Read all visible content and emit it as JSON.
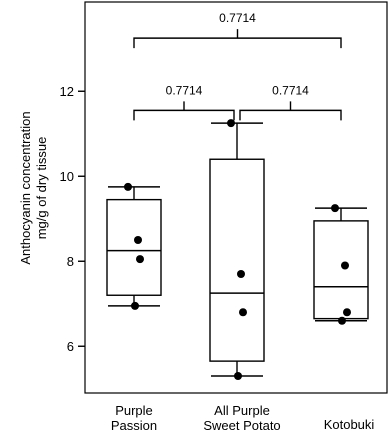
{
  "chart_data": {
    "type": "boxplot",
    "title": "",
    "ylabel": [
      "Anthocyanin concentration",
      "mg/g of dry tissue"
    ],
    "xlabel": "",
    "ylim": [
      4.9,
      14.1
    ],
    "yticks": [
      6,
      8,
      10,
      12
    ],
    "grid": false,
    "categories": [
      [
        "Purple",
        "Passion"
      ],
      [
        "All Purple",
        "Sweet Potato"
      ],
      [
        "Kotobuki"
      ]
    ],
    "boxes": [
      {
        "min": 6.95,
        "q1": 7.2,
        "median": 8.25,
        "q3": 9.45,
        "max": 9.75,
        "points": [
          9.75,
          8.5,
          8.05,
          6.95
        ]
      },
      {
        "min": 5.3,
        "q1": 5.65,
        "median": 7.25,
        "q3": 10.4,
        "max": 11.25,
        "points": [
          11.25,
          7.7,
          6.8,
          5.3
        ]
      },
      {
        "min": 6.6,
        "q1": 6.65,
        "median": 7.4,
        "q3": 8.95,
        "max": 9.25,
        "points": [
          9.25,
          7.9,
          6.8,
          6.6
        ]
      }
    ],
    "comparisons": [
      {
        "from": 0,
        "to": 1,
        "label": "0.7714",
        "y": 11.55
      },
      {
        "from": 1,
        "to": 2,
        "label": "0.7714",
        "y": 11.55
      },
      {
        "from": 0,
        "to": 2,
        "label": "0.7714",
        "y": 13.25
      }
    ]
  }
}
